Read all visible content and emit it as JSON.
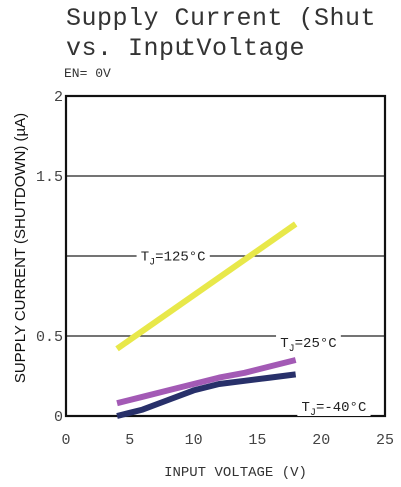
{
  "title_line1": "Supply Current (Shut",
  "title_line2_a": "vs. Inpu",
  "title_line2_b": "tVoltage",
  "condition": "EN= 0V",
  "chart_data": {
    "type": "line",
    "xlabel": "INPUT VOLTAGE (V)",
    "ylabel": "SUPPLY CURRENT (SHUTDOWN) (µA)",
    "xlim": [
      0,
      25
    ],
    "ylim": [
      0,
      2
    ],
    "xticks": [
      "0",
      "5",
      "10",
      "15",
      "20",
      "25"
    ],
    "yticks": [
      "0",
      "0.5",
      "1.5",
      "2"
    ],
    "grid": true,
    "series": [
      {
        "name": "TJ=125°C",
        "color": "#e8e84a",
        "x": [
          4,
          18
        ],
        "y": [
          0.42,
          1.2
        ],
        "label": {
          "pre": "T",
          "sub": "J",
          "post": "=125°C"
        }
      },
      {
        "name": "TJ=25°C",
        "color": "#a35ab5",
        "x": [
          4,
          6,
          8,
          10,
          12,
          14,
          16,
          18
        ],
        "y": [
          0.08,
          0.12,
          0.16,
          0.2,
          0.24,
          0.27,
          0.31,
          0.35
        ],
        "label": {
          "pre": "T",
          "sub": "J",
          "post": "=25°C"
        }
      },
      {
        "name": "TJ=-40°C",
        "color": "#28306a",
        "x": [
          4,
          6,
          8,
          10,
          12,
          14,
          16,
          18
        ],
        "y": [
          0.0,
          0.04,
          0.1,
          0.16,
          0.2,
          0.22,
          0.24,
          0.26
        ],
        "label": {
          "pre": "T",
          "sub": "J",
          "post": "=-40°C"
        }
      }
    ]
  }
}
